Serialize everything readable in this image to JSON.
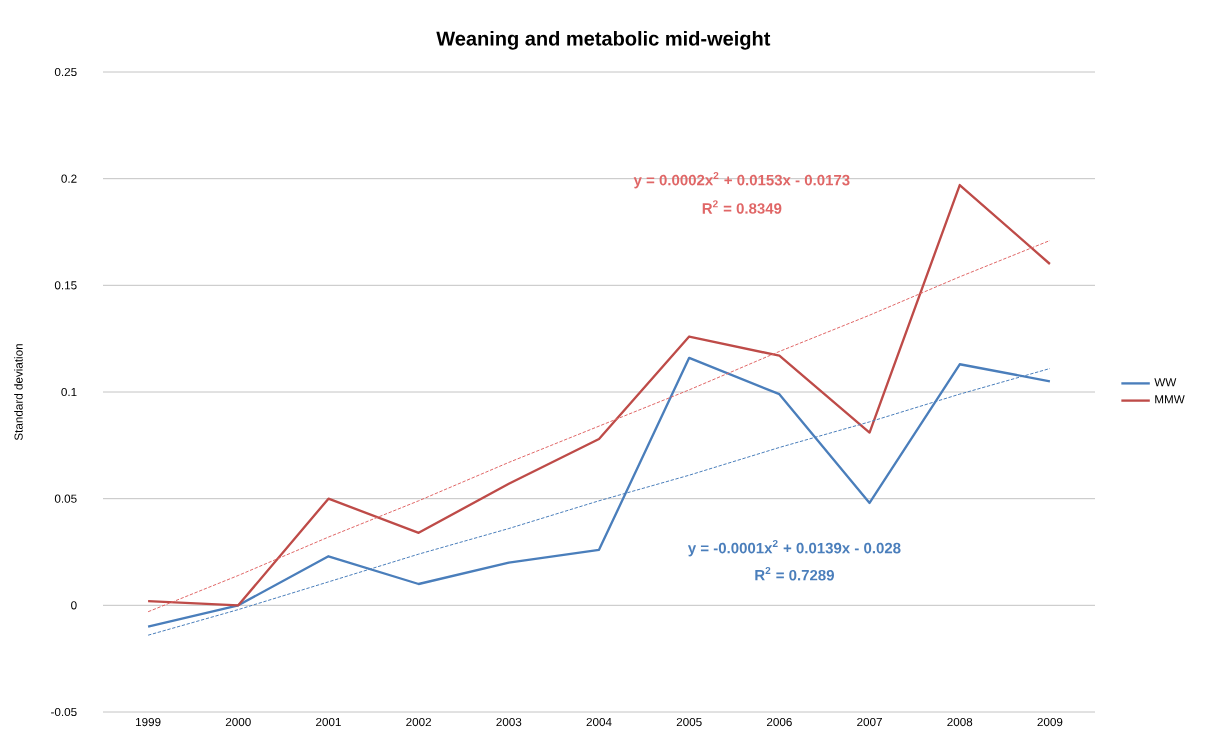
{
  "chart_data": {
    "type": "line",
    "title": "Weaning and metabolic mid-weight",
    "ylabel": "Standard deviation",
    "categories": [
      "1999",
      "2000",
      "2001",
      "2002",
      "2003",
      "2004",
      "2005",
      "2006",
      "2007",
      "2008",
      "2009"
    ],
    "series": [
      {
        "name": "WW",
        "color": "#4a7ebb",
        "values": [
          -0.01,
          0,
          0.023,
          0.01,
          0.02,
          0.026,
          0.116,
          0.099,
          0.048,
          0.113,
          0.105
        ]
      },
      {
        "name": "MMW",
        "color": "#be4b48",
        "values": [
          0.002,
          0,
          0.05,
          0.034,
          0.057,
          0.078,
          0.126,
          0.117,
          0.081,
          0.197,
          0.16
        ]
      },
      {
        "type": "line",
        "line_style": "dashed",
        "color": "#4a7ebb",
        "values": [
          -0.014,
          -0.002,
          0.011,
          0.024,
          0.036,
          0.049,
          0.061,
          0.074,
          0.086,
          0.099,
          0.111
        ]
      },
      {
        "type": "line",
        "line_style": "dashed",
        "color": "#e06666",
        "values": [
          -0.003,
          0.014,
          0.032,
          0.049,
          0.067,
          0.084,
          0.101,
          0.119,
          0.136,
          0.154,
          0.171
        ]
      }
    ],
    "ylim": [
      -0.05,
      0.25
    ],
    "yticks": [
      -0.05,
      0,
      0.05,
      0.1,
      0.15,
      0.2,
      0.25
    ],
    "grid": "y",
    "legend": "right",
    "annotations": [
      "y = 0.0002x$^{2}$ + 0.0153x - 0.0173",
      "R$^{2}$ = 0.8349",
      "y = -0.0001x$^{2}$ + 0.0139x - 0.028",
      "R$^{2}$ = 0.7289"
    ]
  }
}
